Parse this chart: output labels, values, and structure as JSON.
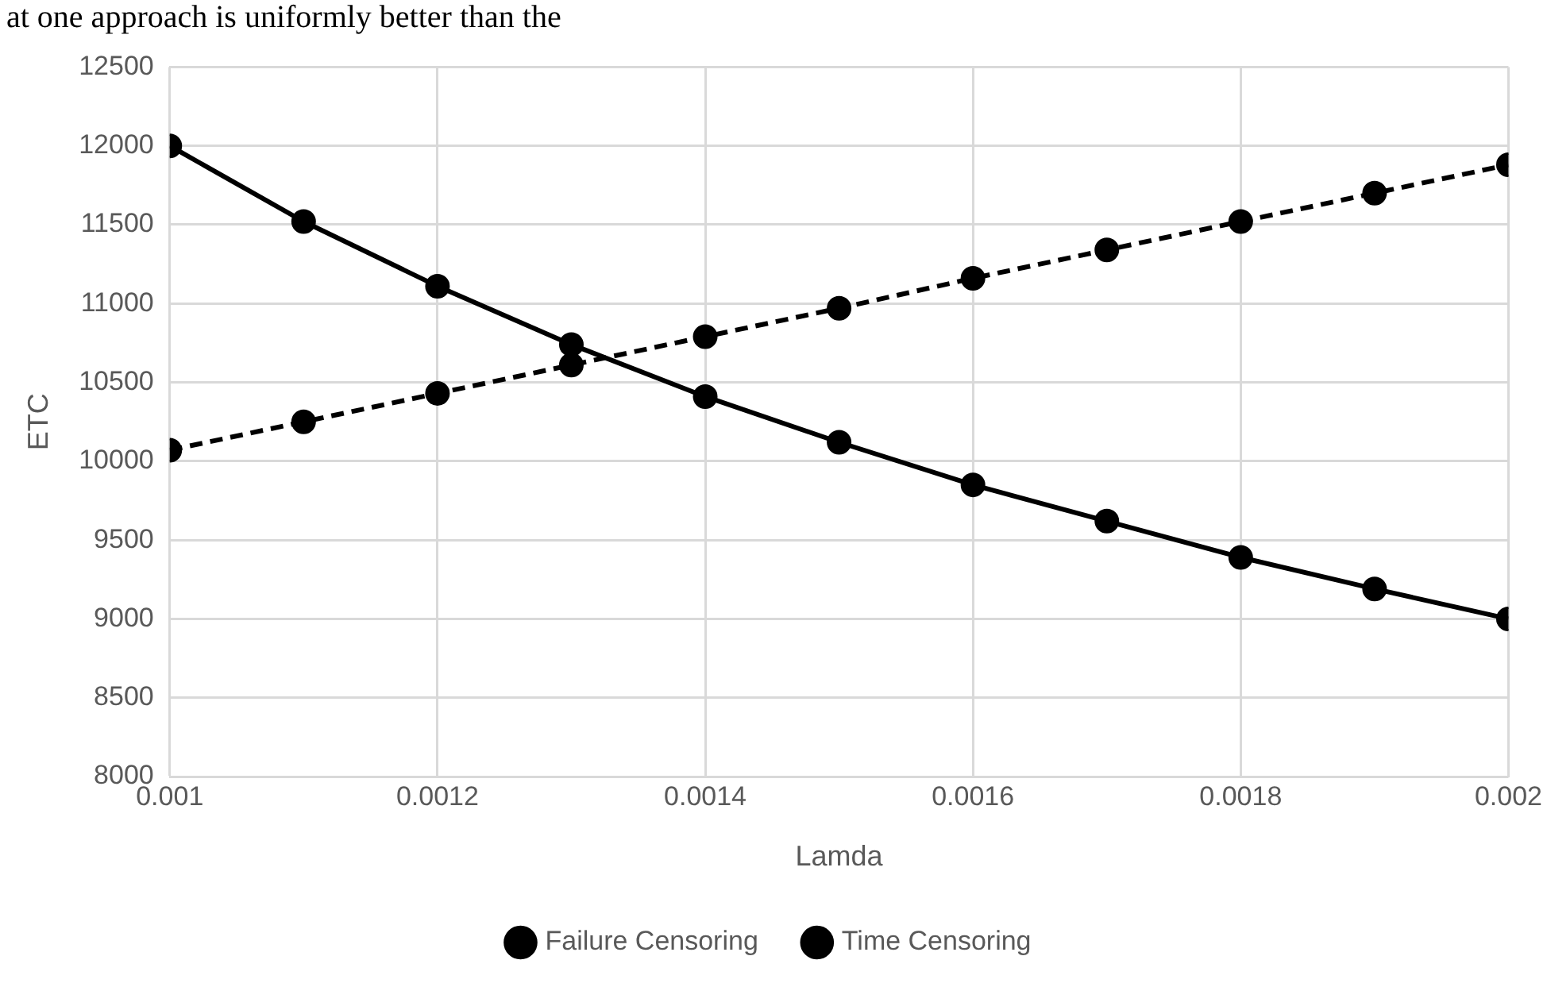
{
  "chart_data": {
    "type": "line",
    "xlabel": "Lamda",
    "ylabel": "ETC",
    "annotations": [
      "at one approach is uniformly better than the"
    ],
    "x": [
      0.001,
      0.0011,
      0.0012,
      0.0013,
      0.0014,
      0.0015,
      0.0016,
      0.0017,
      0.0018,
      0.0019,
      0.002
    ],
    "xlim": [
      0.001,
      0.002
    ],
    "xticks": [
      0.001,
      0.0012,
      0.0014,
      0.0016,
      0.0018,
      0.002
    ],
    "ylim": [
      8000,
      12500
    ],
    "yticks": [
      8000,
      8500,
      9000,
      9500,
      10000,
      10500,
      11000,
      11500,
      12000,
      12500
    ],
    "grid": true,
    "legend": "bottom",
    "marker": "circle",
    "series": [
      {
        "name": "Failure Censoring",
        "color": "#000000",
        "line_style": "solid",
        "values": [
          12000,
          11520,
          11110,
          10740,
          10410,
          10120,
          9850,
          9620,
          9390,
          9190,
          9000
        ]
      },
      {
        "name": "Time Censoring",
        "color": "#000000",
        "line_style": "dashed",
        "values": [
          10070,
          10250,
          10430,
          10610,
          10790,
          10970,
          11160,
          11340,
          11520,
          11700,
          11880
        ]
      }
    ]
  }
}
